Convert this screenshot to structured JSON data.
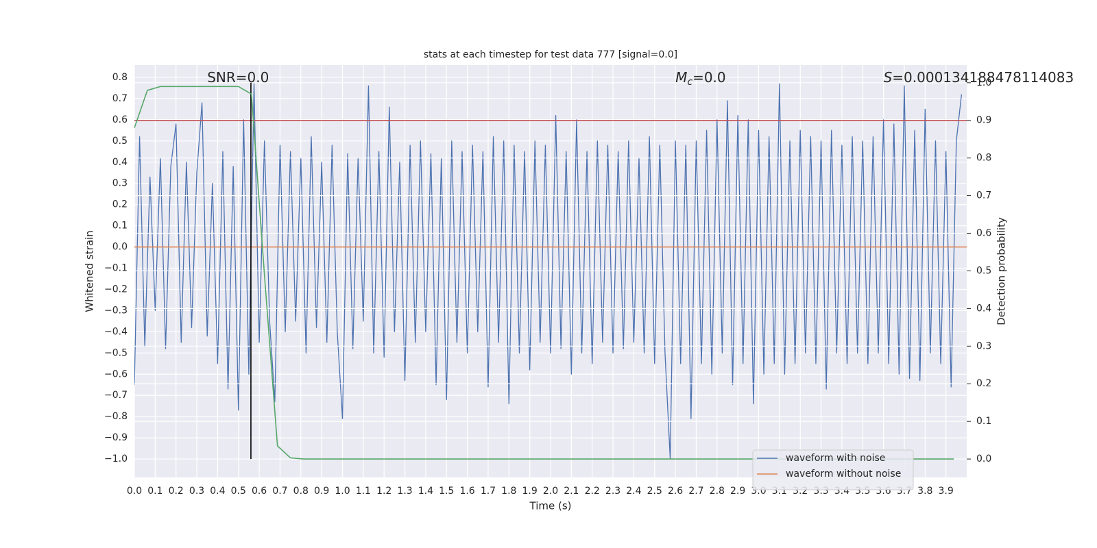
{
  "chart_data": {
    "type": "line",
    "title": "stats at each timestep for test data 777 [signal=0.0]",
    "x_label": "Time (s)",
    "y_label": "Whitened strain",
    "y2_label": "Detection probability",
    "grid": true,
    "legend_loc": "lower right",
    "background": "#eaeaf2",
    "xlim": [
      0,
      4.0
    ],
    "ylim": [
      -1.087,
      0.858
    ],
    "y2lim": [
      -0.049,
      1.047
    ],
    "xticks": [
      {
        "value": 0,
        "label": "0.0"
      },
      {
        "value": 0.1,
        "label": "0.1"
      },
      {
        "value": 0.2,
        "label": "0.2"
      },
      {
        "value": 0.3,
        "label": "0.3"
      },
      {
        "value": 0.4,
        "label": "0.4"
      },
      {
        "value": 0.5,
        "label": "0.5"
      },
      {
        "value": 0.6,
        "label": "0.6"
      },
      {
        "value": 0.7,
        "label": "0.7"
      },
      {
        "value": 0.8,
        "label": "0.8"
      },
      {
        "value": 0.9,
        "label": "0.9"
      },
      {
        "value": 1,
        "label": "1.0"
      },
      {
        "value": 1.1,
        "label": "1.1"
      },
      {
        "value": 1.2,
        "label": "1.2"
      },
      {
        "value": 1.3,
        "label": "1.3"
      },
      {
        "value": 1.4,
        "label": "1.4"
      },
      {
        "value": 1.5,
        "label": "1.5"
      },
      {
        "value": 1.6,
        "label": "1.6"
      },
      {
        "value": 1.7,
        "label": "1.7"
      },
      {
        "value": 1.8,
        "label": "1.8"
      },
      {
        "value": 1.9,
        "label": "1.9"
      },
      {
        "value": 2,
        "label": "2.0"
      },
      {
        "value": 2.1,
        "label": "2.1"
      },
      {
        "value": 2.2,
        "label": "2.2"
      },
      {
        "value": 2.3,
        "label": "2.3"
      },
      {
        "value": 2.4,
        "label": "2.4"
      },
      {
        "value": 2.5,
        "label": "2.5"
      },
      {
        "value": 2.6,
        "label": "2.6"
      },
      {
        "value": 2.7,
        "label": "2.7"
      },
      {
        "value": 2.8,
        "label": "2.8"
      },
      {
        "value": 2.9,
        "label": "2.9"
      },
      {
        "value": 3,
        "label": "3.0"
      },
      {
        "value": 3.1,
        "label": "3.1"
      },
      {
        "value": 3.2,
        "label": "3.2"
      },
      {
        "value": 3.3,
        "label": "3.3"
      },
      {
        "value": 3.4,
        "label": "3.4"
      },
      {
        "value": 3.5,
        "label": "3.5"
      },
      {
        "value": 3.6,
        "label": "3.6"
      },
      {
        "value": 3.7,
        "label": "3.7"
      },
      {
        "value": 3.8,
        "label": "3.8"
      },
      {
        "value": 3.9,
        "label": "3.9"
      }
    ],
    "yticks": [
      0.8,
      0.7,
      0.6,
      0.5,
      0.4,
      0.3,
      0.2,
      0.1,
      {
        "value": 0,
        "label": "0.0"
      },
      {
        "value": -0.1,
        "label": "−0.1"
      },
      {
        "value": -0.2,
        "label": "−0.2"
      },
      {
        "value": -0.3,
        "label": "−0.3"
      },
      {
        "value": -0.4,
        "label": "−0.4"
      },
      {
        "value": -0.5,
        "label": "−0.5"
      },
      {
        "value": -0.6,
        "label": "−0.6"
      },
      {
        "value": -0.7,
        "label": "−0.7"
      },
      {
        "value": -0.8,
        "label": "−0.8"
      },
      {
        "value": -0.9,
        "label": "−0.9"
      },
      {
        "value": -1,
        "label": "−1.0"
      }
    ],
    "y2ticks": [
      {
        "value": 1,
        "label": "1.0"
      },
      0.9,
      0.8,
      0.7,
      0.6,
      0.5,
      0.4,
      0.3,
      0.2,
      0.1,
      {
        "value": 0,
        "label": "0.0"
      }
    ],
    "annotations": [
      {
        "text": "SNR=0.0",
        "x": 0.35
      },
      {
        "symbol": "M",
        "subscript": "c",
        "text": "=0.0",
        "x": 2.6
      },
      {
        "symbol": "S",
        "text": "=0.000134188478114083",
        "x": 3.6
      }
    ],
    "series": [
      {
        "name": "waveform with noise",
        "color": "#4c72b0",
        "x": [
          0,
          0.025,
          0.05,
          0.075,
          0.1,
          0.125,
          0.15,
          0.175,
          0.2,
          0.225,
          0.25,
          0.275,
          0.3,
          0.325,
          0.35,
          0.375,
          0.4,
          0.425,
          0.45,
          0.475,
          0.5,
          0.525,
          0.55,
          0.575,
          0.6,
          0.625,
          0.65,
          0.675,
          0.7,
          0.725,
          0.75,
          0.775,
          0.8,
          0.825,
          0.85,
          0.875,
          0.9,
          0.925,
          0.95,
          0.975,
          1,
          1.025,
          1.05,
          1.075,
          1.1,
          1.125,
          1.15,
          1.175,
          1.2,
          1.225,
          1.25,
          1.275,
          1.3,
          1.325,
          1.35,
          1.375,
          1.4,
          1.425,
          1.45,
          1.475,
          1.5,
          1.525,
          1.55,
          1.575,
          1.6,
          1.625,
          1.65,
          1.675,
          1.7,
          1.725,
          1.75,
          1.775,
          1.8,
          1.825,
          1.85,
          1.875,
          1.9,
          1.925,
          1.95,
          1.975,
          2,
          2.025,
          2.05,
          2.075,
          2.1,
          2.125,
          2.15,
          2.175,
          2.2,
          2.225,
          2.25,
          2.275,
          2.3,
          2.325,
          2.35,
          2.375,
          2.4,
          2.425,
          2.45,
          2.475,
          2.5,
          2.525,
          2.55,
          2.575,
          2.6,
          2.625,
          2.65,
          2.675,
          2.7,
          2.725,
          2.75,
          2.775,
          2.8,
          2.825,
          2.85,
          2.875,
          2.9,
          2.925,
          2.95,
          2.975,
          3,
          3.025,
          3.05,
          3.075,
          3.1,
          3.125,
          3.15,
          3.175,
          3.2,
          3.225,
          3.25,
          3.275,
          3.3,
          3.325,
          3.35,
          3.375,
          3.4,
          3.425,
          3.45,
          3.475,
          3.5,
          3.525,
          3.55,
          3.575,
          3.6,
          3.625,
          3.65,
          3.675,
          3.7,
          3.725,
          3.75,
          3.775,
          3.8,
          3.825,
          3.85,
          3.875,
          3.9,
          3.925,
          3.95,
          3.975
        ],
        "values": [
          -0.65,
          0.52,
          -0.47,
          0.33,
          -0.3,
          0.42,
          -0.48,
          0.38,
          0.58,
          -0.45,
          0.4,
          -0.38,
          0.35,
          0.68,
          -0.42,
          0.3,
          -0.55,
          0.45,
          -0.67,
          0.38,
          -0.77,
          0.6,
          -0.6,
          0.77,
          -0.45,
          0.5,
          -0.35,
          -0.73,
          0.48,
          -0.4,
          0.45,
          -0.35,
          0.42,
          -0.5,
          0.52,
          -0.38,
          0.4,
          -0.45,
          0.48,
          -0.4,
          -0.81,
          0.44,
          -0.48,
          0.42,
          -0.35,
          0.76,
          -0.5,
          0.45,
          -0.52,
          0.66,
          -0.4,
          0.4,
          -0.63,
          0.48,
          -0.45,
          0.5,
          -0.4,
          0.44,
          -0.65,
          0.42,
          -0.72,
          0.5,
          -0.45,
          0.45,
          -0.5,
          0.48,
          -0.4,
          0.45,
          -0.66,
          0.52,
          -0.45,
          0.5,
          -0.74,
          0.48,
          -0.5,
          0.45,
          -0.58,
          0.5,
          -0.45,
          0.48,
          -0.5,
          0.62,
          -0.48,
          0.45,
          -0.6,
          0.6,
          -0.5,
          0.45,
          -0.55,
          0.5,
          -0.45,
          0.48,
          -0.5,
          0.45,
          -0.48,
          0.5,
          -0.45,
          0.42,
          -0.5,
          0.52,
          -0.55,
          0.48,
          -0.5,
          -1.0,
          0.5,
          -0.55,
          0.48,
          -0.81,
          0.5,
          -0.55,
          0.55,
          -0.6,
          0.6,
          -0.5,
          0.69,
          -0.65,
          0.62,
          -0.55,
          0.6,
          -0.74,
          0.55,
          -0.6,
          0.52,
          -0.55,
          0.77,
          -0.6,
          0.5,
          -0.55,
          0.55,
          -0.5,
          0.52,
          -0.55,
          0.5,
          -0.67,
          0.55,
          -0.5,
          0.48,
          -0.55,
          0.52,
          -0.5,
          0.5,
          -0.55,
          0.52,
          -0.5,
          0.6,
          -0.55,
          0.58,
          -0.6,
          0.76,
          -0.62,
          0.55,
          -0.63,
          0.65,
          -0.5,
          0.5,
          -0.55,
          0.45,
          -0.66,
          0.5,
          0.72
        ]
      },
      {
        "name": "waveform without noise",
        "color": "#dd8452",
        "x": [
          0,
          4.0
        ],
        "values": [
          0,
          0
        ]
      },
      {
        "color": "#c44e52",
        "axis": "y2",
        "x": [
          0,
          4.0
        ],
        "values": [
          0.9,
          0.9
        ]
      },
      {
        "color": "#000000",
        "axis": "y2",
        "x": [
          0.56,
          0.56
        ],
        "values": [
          0,
          1.0
        ]
      },
      {
        "color": "#55a868",
        "axis": "y2",
        "x": [
          0,
          0.0625,
          0.125,
          0.1875,
          0.25,
          0.3125,
          0.375,
          0.4375,
          0.5,
          0.5625,
          0.625,
          0.6875,
          0.75,
          0.8125,
          0.875,
          0.9375,
          1,
          1.0625,
          1.125,
          1.1875,
          1.25,
          1.3125,
          1.375,
          1.4375,
          1.5,
          1.5625,
          1.625,
          1.6875,
          1.75,
          1.8125,
          1.875,
          1.9375,
          2,
          2.0625,
          2.125,
          2.1875,
          2.25,
          2.3125,
          2.375,
          2.4375,
          2.5,
          2.5625,
          2.625,
          2.6875,
          2.75,
          2.8125,
          2.875,
          2.9375,
          3,
          3.0625,
          3.125,
          3.1875,
          3.25,
          3.3125,
          3.375,
          3.4375,
          3.5,
          3.5625,
          3.625,
          3.6875,
          3.75,
          3.8125,
          3.875,
          3.9375
        ],
        "values": [
          0.88,
          0.98,
          0.99,
          0.99,
          0.99,
          0.99,
          0.99,
          0.99,
          0.99,
          0.97,
          0.49,
          0.035,
          0.003,
          0,
          0,
          0,
          0,
          0,
          0,
          0,
          0,
          0,
          0,
          0,
          0,
          0,
          0,
          0,
          0,
          0,
          0,
          0,
          0,
          0,
          0,
          0,
          0,
          0,
          0,
          0,
          0,
          0,
          0,
          0,
          0,
          0,
          0,
          0,
          0,
          0,
          0,
          0,
          0,
          0,
          0,
          0,
          0,
          0,
          0,
          0,
          0,
          0,
          0,
          0
        ]
      }
    ]
  }
}
